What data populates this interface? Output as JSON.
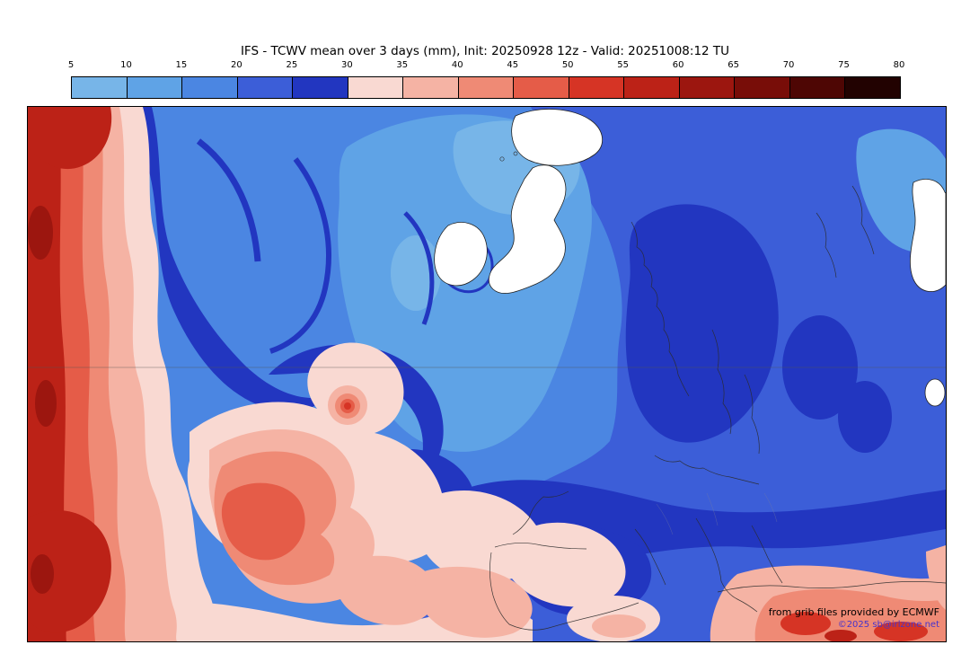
{
  "title": "IFS - TCWV mean over 3 days (mm), Init: 20250928 12z - Valid: 20251008:12 TU",
  "colorbar": {
    "unit": "mm",
    "ticks": [
      "5",
      "10",
      "15",
      "20",
      "25",
      "30",
      "35",
      "40",
      "45",
      "50",
      "55",
      "60",
      "65",
      "70",
      "75",
      "80"
    ],
    "segments": [
      {
        "from": 5,
        "to": 10,
        "color": "#77b5e8"
      },
      {
        "from": 10,
        "to": 15,
        "color": "#5fa3e6"
      },
      {
        "from": 15,
        "to": 20,
        "color": "#4b86e2"
      },
      {
        "from": 20,
        "to": 25,
        "color": "#3c5ed8"
      },
      {
        "from": 25,
        "to": 30,
        "color": "#2236c0"
      },
      {
        "from": 30,
        "to": 35,
        "color": "#f9d9d2"
      },
      {
        "from": 35,
        "to": 40,
        "color": "#f5b3a4"
      },
      {
        "from": 40,
        "to": 45,
        "color": "#ef8a75"
      },
      {
        "from": 45,
        "to": 50,
        "color": "#e55c48"
      },
      {
        "from": 50,
        "to": 55,
        "color": "#d63425"
      },
      {
        "from": 55,
        "to": 60,
        "color": "#bc2217"
      },
      {
        "from": 60,
        "to": 65,
        "color": "#9c160f"
      },
      {
        "from": 65,
        "to": 70,
        "color": "#780d08"
      },
      {
        "from": 70,
        "to": 75,
        "color": "#4e0604"
      },
      {
        "from": 75,
        "to": 80,
        "color": "#220201"
      }
    ]
  },
  "map": {
    "watermark_line1": "from grib files provided by ECMWF",
    "watermark_line2": "©2025 sb@irlzone.net"
  }
}
